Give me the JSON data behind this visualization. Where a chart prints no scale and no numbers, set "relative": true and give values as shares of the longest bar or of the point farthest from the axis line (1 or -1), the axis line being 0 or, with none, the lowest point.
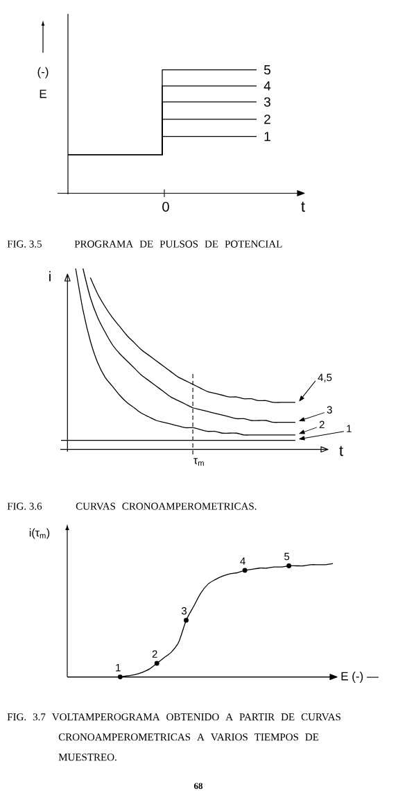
{
  "chart_data": [
    {
      "type": "step",
      "title": "FIG. 3.5",
      "subtitle": "PROGRAMA DE PULSOS DE POTENCIAL",
      "xlabel": "t",
      "ylabel": "(-) E",
      "categories": [
        null,
        null,
        null
      ],
      "relative": true,
      "annotations": [
        "0"
      ],
      "series": [
        {
          "name": "1",
          "color": "#000000",
          "values": [
            0.31,
            0.46,
            0.46
          ]
        },
        {
          "name": "2",
          "color": "#000000",
          "values": [
            0.31,
            0.6,
            0.6
          ]
        },
        {
          "name": "3",
          "color": "#000000",
          "values": [
            0.31,
            0.74,
            0.74
          ]
        },
        {
          "name": "4",
          "color": "#000000",
          "values": [
            0.31,
            0.87,
            0.87
          ]
        },
        {
          "name": "5",
          "color": "#000000",
          "values": [
            0.31,
            1,
            1
          ]
        }
      ]
    },
    {
      "type": "line",
      "title": "FIG. 3.6",
      "subtitle": "CURVAS CRONOAMPEROMETRICAS.",
      "xlabel": "t",
      "ylabel": "i",
      "relative": true,
      "legend": "right",
      "annotations": [
        "τ$_{m}$"
      ],
      "categories": [
        null,
        null,
        null,
        null,
        null,
        null,
        null,
        null,
        null,
        null,
        null,
        null,
        null,
        null,
        null,
        null,
        null,
        null,
        null,
        null,
        null,
        null,
        null,
        null,
        null,
        null,
        null,
        null,
        null,
        null,
        null,
        null,
        null
      ],
      "series": [
        {
          "name": "1",
          "color": "#000000",
          "values": [
            0.05,
            0.05,
            0.05,
            0.05,
            0.05,
            0.05,
            0.05,
            0.05,
            0.05,
            0.05,
            0.05,
            0.05,
            0.05,
            0.05,
            0.05,
            0.05,
            0.05,
            0.05,
            0.05,
            0.05,
            0.05,
            0.05,
            0.05,
            0.05,
            0.05,
            0.05,
            0.05,
            0.05,
            0.05,
            0.05,
            0.05,
            0.05,
            0.05
          ]
        },
        {
          "name": "2",
          "color": "#000000",
          "values": [
            null,
            null,
            1,
            0.77,
            0.6,
            0.48,
            0.4,
            0.35,
            0.3,
            0.26,
            0.23,
            0.2,
            0.18,
            0.16,
            0.15,
            0.14,
            0.13,
            0.12,
            0.12,
            0.11,
            0.1,
            0.1,
            0.09,
            0.09,
            0.09,
            0.08,
            0.08,
            0.08,
            0.08,
            0.08,
            0.08,
            0.08,
            0.08
          ]
        },
        {
          "name": "3",
          "color": "#000000",
          "values": [
            null,
            null,
            null,
            1,
            0.84,
            0.73,
            0.65,
            0.58,
            0.53,
            0.49,
            0.45,
            0.41,
            0.38,
            0.35,
            0.32,
            0.29,
            0.27,
            0.25,
            0.23,
            0.22,
            0.21,
            0.2,
            0.19,
            0.18,
            0.17,
            0.17,
            0.16,
            0.16,
            0.16,
            0.15,
            0.15,
            0.15,
            0.15
          ]
        },
        {
          "name": "4,5",
          "color": "#000000",
          "values": [
            null,
            null,
            null,
            null,
            0.95,
            0.86,
            0.79,
            0.73,
            0.68,
            0.63,
            0.59,
            0.55,
            0.52,
            0.49,
            0.46,
            0.43,
            0.4,
            0.38,
            0.36,
            0.34,
            0.32,
            0.31,
            0.3,
            0.29,
            0.29,
            0.28,
            0.28,
            0.27,
            0.27,
            0.26,
            0.26,
            0.26,
            0.26
          ]
        }
      ]
    },
    {
      "type": "line",
      "title": "FIG. 3.7 VOLTAMPEROGRAMA OBTENIDO A PARTIR DE CURVAS CRONOAMPEROMETRICAS A VARIOS TIEMPOS DE MUESTREO.",
      "xlabel": "E (-) —",
      "ylabel": "i(τ$_{m}$)",
      "relative": true,
      "annotations": [
        "68"
      ],
      "categories": [
        null,
        null,
        null,
        null,
        null,
        null,
        null,
        null,
        null,
        null,
        null,
        null,
        null,
        null,
        null,
        null,
        null,
        null,
        null,
        null,
        null,
        null,
        null,
        null,
        null,
        null,
        null,
        null,
        null,
        null
      ],
      "series": [
        {
          "color": "#000000",
          "values": [
            0,
            0.01,
            0.02,
            0.04,
            0.07,
            0.12,
            0.17,
            0.22,
            0.31,
            0.5,
            0.62,
            0.74,
            0.82,
            0.86,
            0.89,
            0.91,
            0.92,
            0.94,
            0.95,
            0.96,
            0.96,
            0.97,
            0.97,
            0.98,
            0.98,
            0.98,
            0.99,
            0.99,
            0.99,
            1
          ]
        },
        {
          "name": "1",
          "marker": "circle",
          "color": "#000000",
          "values": [
            0,
            null,
            null,
            null,
            null,
            null,
            null,
            null,
            null,
            null,
            null,
            null,
            null,
            null,
            null,
            null,
            null,
            null,
            null,
            null,
            null,
            null,
            null,
            null,
            null,
            null,
            null,
            null,
            null,
            null
          ]
        },
        {
          "name": "2",
          "marker": "circle",
          "color": "#000000",
          "values": [
            null,
            null,
            null,
            null,
            null,
            0.12,
            null,
            null,
            null,
            null,
            null,
            null,
            null,
            null,
            null,
            null,
            null,
            null,
            null,
            null,
            null,
            null,
            null,
            null,
            null,
            null,
            null,
            null,
            null,
            null
          ]
        },
        {
          "name": "3",
          "marker": "circle",
          "color": "#000000",
          "values": [
            null,
            null,
            null,
            null,
            null,
            null,
            null,
            null,
            null,
            0.5,
            null,
            null,
            null,
            null,
            null,
            null,
            null,
            null,
            null,
            null,
            null,
            null,
            null,
            null,
            null,
            null,
            null,
            null,
            null,
            null
          ]
        },
        {
          "name": "4",
          "marker": "circle",
          "color": "#000000",
          "values": [
            null,
            null,
            null,
            null,
            null,
            null,
            null,
            null,
            null,
            null,
            null,
            null,
            null,
            null,
            null,
            null,
            null,
            0.94,
            null,
            null,
            null,
            null,
            null,
            null,
            null,
            null,
            null,
            null,
            null,
            null
          ]
        },
        {
          "name": "5",
          "marker": "circle",
          "color": "#000000",
          "values": [
            null,
            null,
            null,
            null,
            null,
            null,
            null,
            null,
            null,
            null,
            null,
            null,
            null,
            null,
            null,
            null,
            null,
            null,
            null,
            null,
            null,
            null,
            null,
            0.98,
            null,
            null,
            null,
            null,
            null,
            null
          ]
        }
      ]
    }
  ]
}
